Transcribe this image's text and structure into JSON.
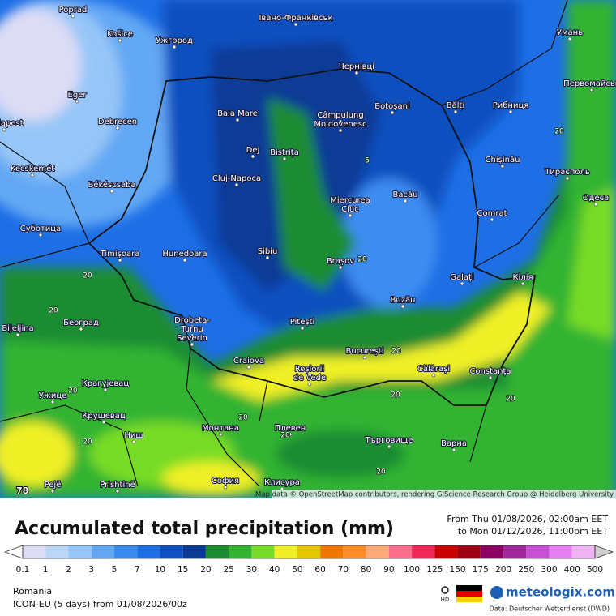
{
  "map": {
    "cities": [
      "Poprad",
      "Košice",
      "Ужгород",
      "Івано-Франківськ",
      "Умань",
      "Чернівці",
      "Eger",
      "Baia Mare",
      "Câmpulung",
      "Moldovenesc",
      "Botoșani",
      "Bălți",
      "Рибниця",
      "Первомайськ",
      "Budapest",
      "Debrecen",
      "Dej",
      "Bistrița",
      "Chișinău",
      "Kecskemét",
      "Cluj-Napoca",
      "Békéscsaba",
      "Тирасполь",
      "Miercurea",
      "Ciuc",
      "Bacău",
      "Одеса",
      "Суботица",
      "Comrat",
      "Timișoara",
      "Hunedoara",
      "Sibiu",
      "Brașov",
      "Galați",
      "Кілія",
      "Bijeljina",
      "Београд",
      "Drobeta-",
      "Turnu",
      "Severin",
      "Pitești",
      "Buzău",
      "Craiova",
      "București",
      "Roșiorii",
      "de Vede",
      "Călărași",
      "Constanța",
      "Крагујевац",
      "Ужице",
      "Крушевац",
      "Монтана",
      "Плевен",
      "Търговище",
      "Ниш",
      "Варна",
      "Pejë",
      "Prishtinë",
      "София",
      "Клисура"
    ],
    "contour_labels": [
      "20",
      "20",
      "20",
      "20",
      "20",
      "20",
      "20",
      "20",
      "20",
      "20",
      "20",
      "20",
      "5"
    ],
    "attribution": "Map data © OpenStreetMap contributors, rendering GIScience Research Group @ Heidelberg University",
    "frame_number": "78"
  },
  "header": {
    "title": "Accumulated total precipitation (mm)",
    "period_from": "From Thu 01/08/2026, 02:00am EET",
    "period_to": "to Mon 01/12/2026, 11:00pm EET"
  },
  "legend": {
    "labels": [
      "0.1",
      "1",
      "2",
      "3",
      "5",
      "7",
      "10",
      "15",
      "20",
      "25",
      "30",
      "40",
      "50",
      "60",
      "70",
      "80",
      "90",
      "100",
      "125",
      "150",
      "175",
      "200",
      "250",
      "300",
      "400",
      "500"
    ],
    "colors": [
      "#ffffff",
      "#dcdcf5",
      "#bcd6f8",
      "#96c6f8",
      "#64a8f4",
      "#3c8cf0",
      "#1e6ee6",
      "#0f4fbf",
      "#0a3a96",
      "#1e8c32",
      "#32b432",
      "#78dc28",
      "#f0f028",
      "#e6c800",
      "#f07800",
      "#ff8c28",
      "#ffaa78",
      "#ff6e8c",
      "#f0285a",
      "#c80000",
      "#a00014",
      "#8c0064",
      "#a0289b",
      "#c850d2",
      "#e67ff0",
      "#f0b4f5",
      "#d0d0d0"
    ]
  },
  "footer": {
    "region": "Romania",
    "model": "ICON-EU (5 days) from 01/08/2026/00z",
    "hd": "HD",
    "brand": "meteologix.com",
    "source": "Data: Deutscher Wetterdienst (DWD)"
  }
}
